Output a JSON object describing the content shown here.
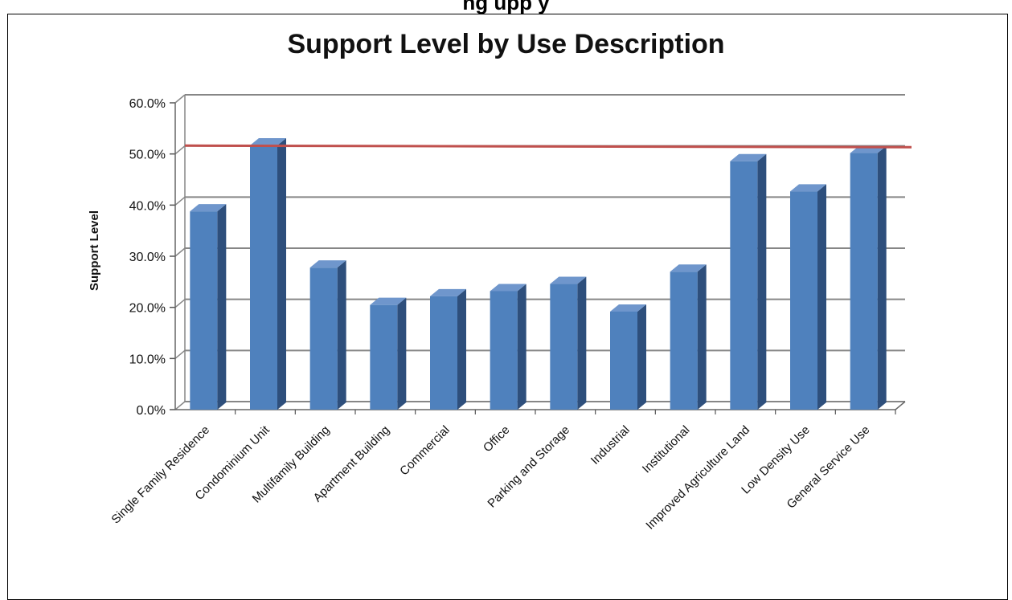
{
  "figure_caption": "ng      upp           y",
  "chart_data": {
    "type": "bar",
    "title": "Support Level by Use Description",
    "xlabel": "",
    "ylabel": "Support Level",
    "ylim": [
      0,
      60
    ],
    "yticks": [
      "0.0%",
      "10.0%",
      "20.0%",
      "30.0%",
      "40.0%",
      "50.0%",
      "60.0%"
    ],
    "grid": true,
    "categories": [
      "Single Family Residence",
      "Condominium Unit",
      "Multifamily Building",
      "Apartment Building",
      "Commercial",
      "Office",
      "Parking and Storage",
      "Industrial",
      "Institutional",
      "Improved Agriculture Land",
      "Low Density Use",
      "General Service Use"
    ],
    "values": [
      39.4,
      52.3,
      28.4,
      21.1,
      22.8,
      23.8,
      25.2,
      19.8,
      27.6,
      49.2,
      43.3,
      50.8
    ],
    "reference_line": 51,
    "colors": {
      "bar": "#4f81bd",
      "bar_side": "#2e4f7c",
      "bar_top": "#6f96cc",
      "reference": "#c0504d",
      "grid": "#868686"
    }
  }
}
